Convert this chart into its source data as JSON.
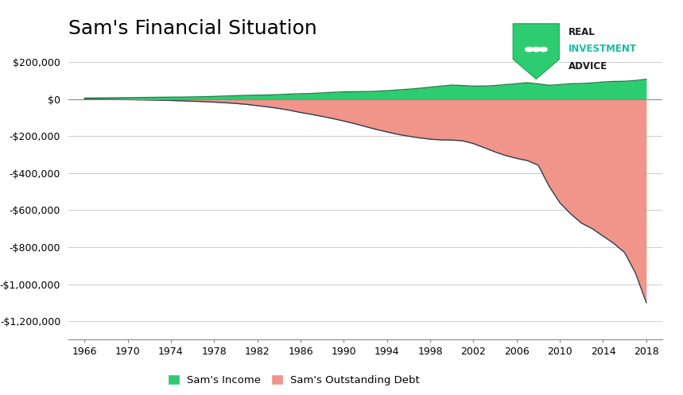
{
  "title": "Sam's Financial Situation",
  "title_fontsize": 18,
  "background_color": "#ffffff",
  "income_color": "#2ecc71",
  "income_edge_color": "#1d8348",
  "debt_color": "#f1948a",
  "debt_edge_color": "#2c3e50",
  "xlabel_ticks": [
    1966,
    1970,
    1974,
    1978,
    1982,
    1986,
    1990,
    1994,
    1998,
    2002,
    2006,
    2010,
    2014,
    2018
  ],
  "ylim": [
    -1300000,
    280000
  ],
  "yticks": [
    200000,
    0,
    -200000,
    -400000,
    -600000,
    -800000,
    -1000000,
    -1200000
  ],
  "legend_income": "Sam's Income",
  "legend_debt": "Sam's Outstanding Debt",
  "years": [
    1966,
    1967,
    1968,
    1969,
    1970,
    1971,
    1972,
    1973,
    1974,
    1975,
    1976,
    1977,
    1978,
    1979,
    1980,
    1981,
    1982,
    1983,
    1984,
    1985,
    1986,
    1987,
    1988,
    1989,
    1990,
    1991,
    1992,
    1993,
    1994,
    1995,
    1996,
    1997,
    1998,
    1999,
    2000,
    2001,
    2002,
    2003,
    2004,
    2005,
    2006,
    2007,
    2008,
    2009,
    2010,
    2011,
    2012,
    2013,
    2014,
    2015,
    2016,
    2017,
    2018
  ],
  "income": [
    6000,
    6500,
    7200,
    8000,
    8500,
    9000,
    9800,
    10500,
    11000,
    11500,
    12300,
    13500,
    15000,
    17000,
    19000,
    21000,
    22000,
    23000,
    25000,
    27500,
    29500,
    31000,
    34000,
    37000,
    40000,
    40500,
    41000,
    43000,
    46000,
    50000,
    54000,
    59000,
    65000,
    71000,
    76000,
    74000,
    71000,
    71000,
    74000,
    79000,
    84000,
    89000,
    83000,
    75000,
    79000,
    84000,
    85000,
    88000,
    93000,
    96000,
    97000,
    101000,
    108000
  ],
  "debt": [
    0,
    -500,
    -1000,
    -1500,
    -2500,
    -3500,
    -4500,
    -5500,
    -7000,
    -9000,
    -11000,
    -13000,
    -16000,
    -19000,
    -23000,
    -28000,
    -35000,
    -42000,
    -50000,
    -60000,
    -72000,
    -82000,
    -93000,
    -105000,
    -118000,
    -132000,
    -148000,
    -163000,
    -177000,
    -190000,
    -200000,
    -209000,
    -216000,
    -220000,
    -221000,
    -225000,
    -240000,
    -262000,
    -285000,
    -305000,
    -320000,
    -332000,
    -357000,
    -470000,
    -560000,
    -620000,
    -670000,
    -700000,
    -740000,
    -780000,
    -830000,
    -940000,
    -1100000
  ],
  "logo_text_line1": "REAL",
  "logo_text_line2": "INVESTMENT",
  "logo_text_line3": "ADVICE",
  "logo_shield_color": "#2ecc71",
  "logo_text_color_black": "#1a1a1a",
  "logo_text_color_teal": "#1abc9c"
}
